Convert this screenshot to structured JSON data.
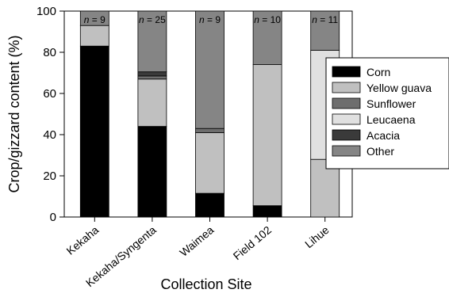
{
  "chart_data": {
    "type": "bar",
    "stacked": true,
    "percent": true,
    "categories": [
      "Kekaha",
      "Kekaha/Syngenta",
      "Waimea",
      "Field 102",
      "Lihue"
    ],
    "sample_sizes": [
      "n = 9",
      "n = 25",
      "n = 9",
      "n = 10",
      "n = 11"
    ],
    "series": [
      {
        "name": "Corn",
        "color": "#000000",
        "values": [
          83,
          44,
          11.5,
          5.5,
          0
        ]
      },
      {
        "name": "Yellow guava",
        "color": "#c0c0c0",
        "values": [
          10,
          23,
          29.5,
          68.5,
          28
        ]
      },
      {
        "name": "Sunflower",
        "color": "#6e6e6e",
        "values": [
          0,
          1.5,
          2,
          0,
          0
        ]
      },
      {
        "name": "Leucaena",
        "color": "#e0e0e0",
        "values": [
          0,
          0,
          0,
          0,
          53
        ]
      },
      {
        "name": "Acacia",
        "color": "#3a3a3a",
        "values": [
          0,
          2,
          0,
          0,
          0
        ]
      },
      {
        "name": "Other",
        "color": "#858585",
        "values": [
          7,
          29.5,
          57,
          26,
          19
        ]
      }
    ],
    "xlabel": "Collection Site",
    "ylabel": "Crop/gizzard content (%)",
    "ylim": [
      0,
      100
    ],
    "yticks": [
      0,
      20,
      40,
      60,
      80,
      100
    ],
    "grid": false,
    "legend_position": "right"
  }
}
